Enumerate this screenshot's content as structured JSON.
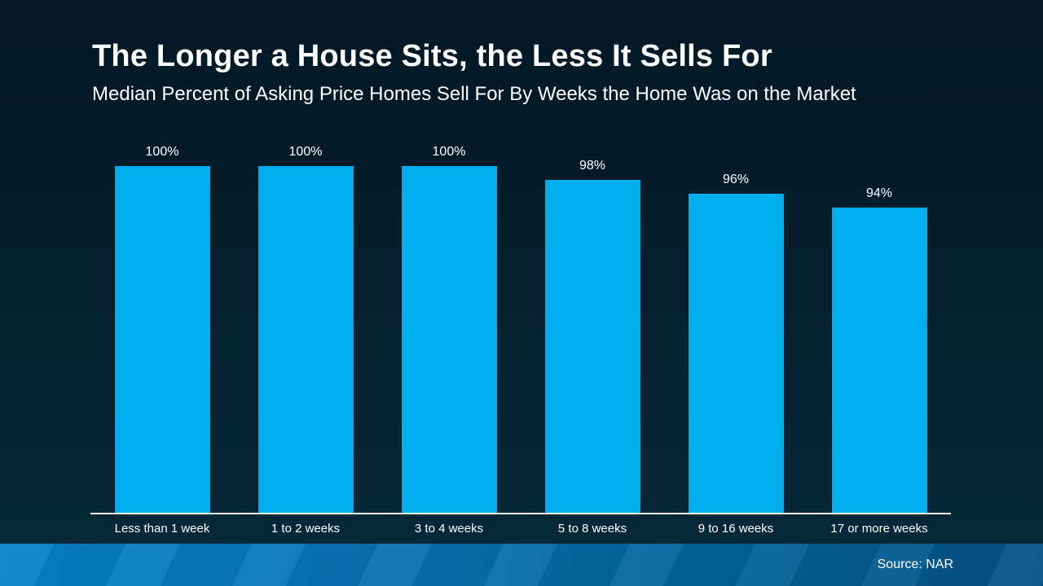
{
  "title": "The Longer a House Sits, the Less It Sells For",
  "subtitle": "Median Percent of Asking Price Homes Sell For By Weeks the Home Was on the Market",
  "footer": {
    "source_label": "Source: NAR"
  },
  "colors": {
    "bar": "#00aeef",
    "background_top": "#031826",
    "background_bottom": "#07293a",
    "axis": "#ffffff",
    "footer_left": "#0783c9",
    "footer_right": "#035285",
    "text": "#ffffff"
  },
  "chart_data": {
    "type": "bar",
    "title": "The Longer a House Sits, the Less It Sells For",
    "subtitle": "Median Percent of Asking Price Homes Sell For By Weeks the Home Was on the Market",
    "categories": [
      "Less than 1 week",
      "1 to 2 weeks",
      "3 to 4 weeks",
      "5 to 8 weeks",
      "9 to 16 weeks",
      "17 or more weeks"
    ],
    "values": [
      100,
      100,
      100,
      98,
      96,
      94
    ],
    "value_labels": [
      "100%",
      "100%",
      "100%",
      "98%",
      "96%",
      "94%"
    ],
    "xlabel": "",
    "ylabel": "",
    "ylim": [
      50,
      100
    ],
    "grid": false,
    "legend": false,
    "bar_color": "#00aeef",
    "value_labels_position": "above-bars",
    "axis_line": "white bottom axis only, no tick marks"
  }
}
